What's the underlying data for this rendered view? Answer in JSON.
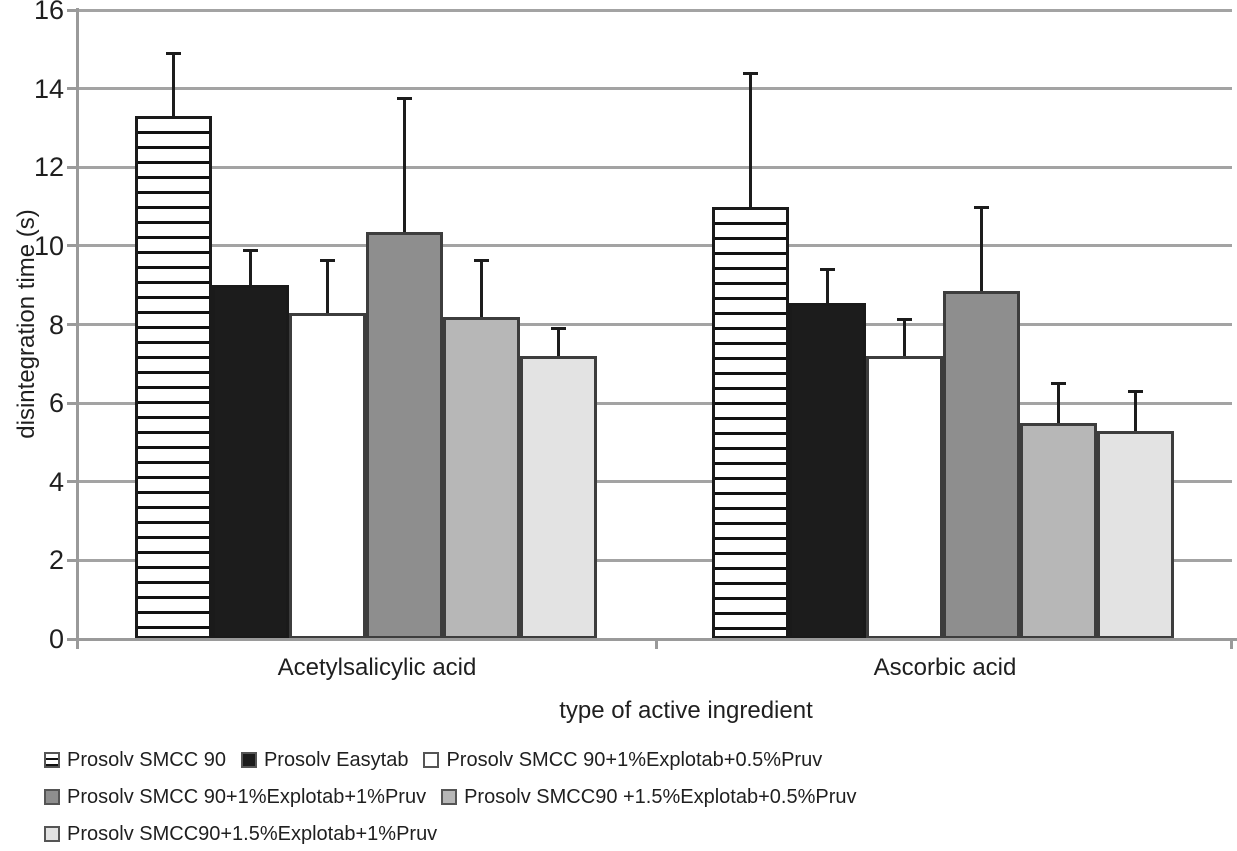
{
  "chart_data": {
    "type": "bar",
    "title": "",
    "xlabel": "type of active ingredient",
    "ylabel": "disintegration time (s)",
    "categories": [
      "Acetylsalicylic acid",
      "Ascorbic acid"
    ],
    "ylim": [
      0,
      16
    ],
    "yticks": [
      0,
      2,
      4,
      6,
      8,
      10,
      12,
      14,
      16
    ],
    "grid": true,
    "legend_position": "bottom-left",
    "error_bars": "one-sided upward whiskers with top caps",
    "series": [
      {
        "name": "Prosolv SMCC 90",
        "values": [
          13.3,
          11.0
        ],
        "errors_plus": [
          1.6,
          3.4
        ],
        "fill": "#ffffff",
        "pattern": "hstripes",
        "border": "#1a1a1a"
      },
      {
        "name": "Prosolv Easytab",
        "values": [
          9.0,
          8.55
        ],
        "errors_plus": [
          0.9,
          0.85
        ],
        "fill": "#1c1c1c",
        "pattern": "solid",
        "border": "#1a1a1a"
      },
      {
        "name": "Prosolv SMCC 90+1%Explotab+0.5%Pruv",
        "values": [
          8.3,
          7.2
        ],
        "errors_plus": [
          1.35,
          0.95
        ],
        "fill": "#ffffff",
        "pattern": "solid",
        "border": "#3d3d3d"
      },
      {
        "name": "Prosolv SMCC 90+1%Explotab+1%Pruv",
        "values": [
          10.35,
          8.85
        ],
        "errors_plus": [
          3.4,
          2.15
        ],
        "fill": "#8e8e8e",
        "pattern": "solid",
        "border": "#3d3d3d"
      },
      {
        "name": "Prosolv SMCC90 +1.5%Explotab+0.5%Pruv",
        "values": [
          8.2,
          5.5
        ],
        "errors_plus": [
          1.45,
          1.0
        ],
        "fill": "#b7b7b7",
        "pattern": "solid",
        "border": "#3d3d3d"
      },
      {
        "name": "Prosolv SMCC90+1.5%Explotab+1%Pruv",
        "values": [
          7.2,
          5.3
        ],
        "errors_plus": [
          0.7,
          1.0
        ],
        "fill": "#e3e3e3",
        "pattern": "solid",
        "border": "#3d3d3d"
      }
    ]
  },
  "colors": {
    "grid": "#a3a3a3",
    "axis": "#9a9a9a",
    "text": "#1f1f1f",
    "error_bar": "#1c1c1c",
    "stripe": "#111111"
  }
}
